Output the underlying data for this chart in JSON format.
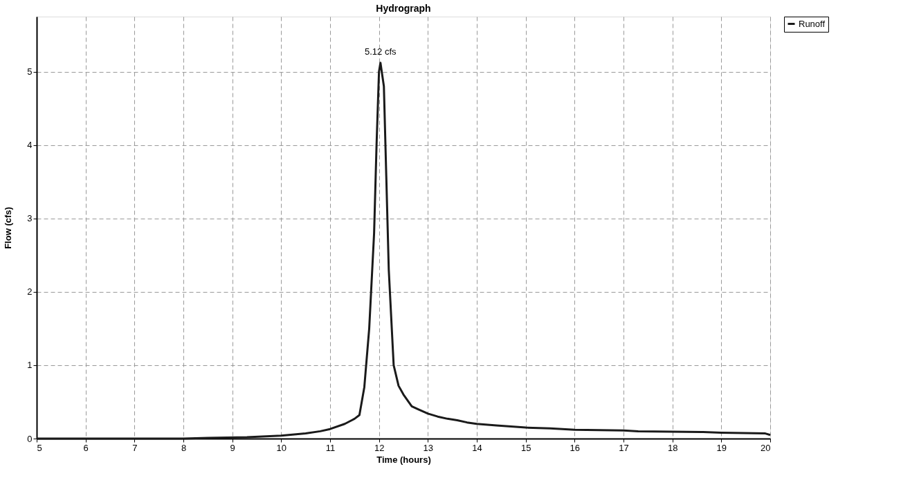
{
  "chart_data": {
    "type": "line",
    "title": "Hydrograph",
    "xlabel": "Time  (hours)",
    "ylabel": "Flow  (cfs)",
    "x": [
      5,
      6,
      7,
      8,
      8.5,
      9.3,
      10,
      10.5,
      10.8,
      11,
      11.3,
      11.5,
      11.6,
      11.7,
      11.8,
      11.9,
      11.95,
      12.0,
      12.03,
      12.1,
      12.2,
      12.3,
      12.4,
      12.5,
      12.67,
      12.8,
      13.0,
      13.2,
      13.4,
      13.6,
      13.8,
      14.0,
      14.4,
      15.0,
      15.5,
      16.0,
      17.0,
      17.3,
      18.6,
      19.0,
      19.9,
      20
    ],
    "series": [
      {
        "name": "Runoff",
        "color": "#1a1a1a",
        "values": [
          0,
          0,
          0,
          0,
          0.01,
          0.02,
          0.04,
          0.07,
          0.1,
          0.13,
          0.2,
          0.27,
          0.32,
          0.7,
          1.5,
          2.8,
          4.0,
          5.0,
          5.12,
          4.8,
          2.3,
          1.0,
          0.72,
          0.6,
          0.44,
          0.4,
          0.34,
          0.3,
          0.27,
          0.25,
          0.22,
          0.2,
          0.18,
          0.15,
          0.14,
          0.12,
          0.11,
          0.1,
          0.09,
          0.08,
          0.07,
          0.05
        ]
      }
    ],
    "annotations": [
      {
        "text": "5.12 cfs",
        "x": 12.03,
        "y": 5.12
      }
    ],
    "xlim": [
      5,
      20
    ],
    "xticks": [
      5,
      6,
      7,
      8,
      9,
      10,
      11,
      12,
      13,
      14,
      15,
      16,
      17,
      18,
      19,
      20
    ],
    "ylim": [
      0,
      5.75
    ],
    "yticks": [
      0,
      1,
      2,
      3,
      4,
      5
    ],
    "grid": true,
    "legend": "top right",
    "line_style": "solid",
    "marker": "none"
  }
}
